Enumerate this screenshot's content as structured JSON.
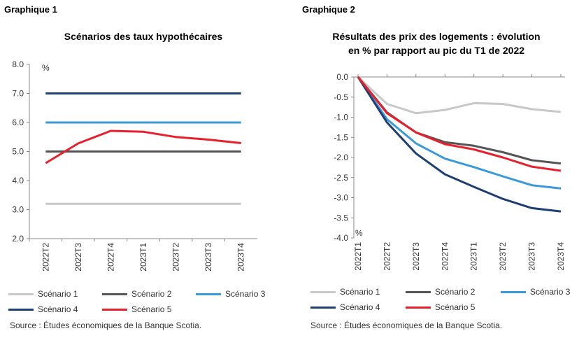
{
  "charts": [
    {
      "label": "Graphique 1",
      "title_lines": [
        "Scénarios des taux hypothécaires"
      ],
      "unit": "%",
      "source": "Source : Études économiques de la Banque Scotia."
    },
    {
      "label": "Graphique 2",
      "title_lines": [
        "Résultats des prix des logements : évolution",
        "en % par rapport au pic du T1 de 2022"
      ],
      "unit": "%",
      "source": "Source : Études économiques de la Banque Scotia."
    }
  ],
  "chart_data": [
    {
      "type": "line",
      "title": "Scénarios des taux hypothécaires",
      "ylabel": "%",
      "ylim": [
        2.0,
        8.0
      ],
      "yticks": [
        "2.0",
        "3.0",
        "4.0",
        "5.0",
        "6.0",
        "7.0",
        "8.0"
      ],
      "categories": [
        "2022T2",
        "2022T3",
        "2022T4",
        "2023T1",
        "2023T2",
        "2023T3",
        "2023T4"
      ],
      "grid": false,
      "legend": "bottom",
      "series": [
        {
          "name": "Scénario 1",
          "color": "#c8c8c8",
          "values": [
            3.2,
            3.2,
            3.2,
            3.2,
            3.2,
            3.2,
            3.2
          ]
        },
        {
          "name": "Scénario 2",
          "color": "#555555",
          "values": [
            5.0,
            5.0,
            5.0,
            5.0,
            5.0,
            5.0,
            5.0
          ]
        },
        {
          "name": "Scénario 3",
          "color": "#3a9ad9",
          "values": [
            6.0,
            6.0,
            6.0,
            6.0,
            6.0,
            6.0,
            6.0
          ]
        },
        {
          "name": "Scénario 4",
          "color": "#1f3f73",
          "values": [
            7.0,
            7.0,
            7.0,
            7.0,
            7.0,
            7.0,
            7.0
          ]
        },
        {
          "name": "Scénario 5",
          "color": "#e8202e",
          "values": [
            4.6,
            5.28,
            5.71,
            5.68,
            5.5,
            5.41,
            5.29
          ]
        }
      ]
    },
    {
      "type": "line",
      "title": "Résultats des prix des logements : évolution en % par rapport au pic du T1 de 2022",
      "ylabel": "%",
      "ylim": [
        -4.0,
        0.0
      ],
      "yticks": [
        "0.0",
        "-0.5",
        "-1.0",
        "-1.5",
        "-2.0",
        "-2.5",
        "-3.0",
        "-3.5",
        "-4.0"
      ],
      "categories": [
        "2022T1",
        "2022T2",
        "2022T3",
        "2022T4",
        "2023T1",
        "2023T2",
        "2023T3",
        "2023T4"
      ],
      "grid": false,
      "legend": "bottom",
      "series": [
        {
          "name": "Scénario 1",
          "color": "#c8c8c8",
          "values": [
            0,
            -0.67,
            -0.9,
            -0.82,
            -0.65,
            -0.67,
            -0.8,
            -0.87
          ]
        },
        {
          "name": "Scénario 2",
          "color": "#555555",
          "values": [
            0,
            -0.88,
            -1.38,
            -1.62,
            -1.71,
            -1.87,
            -2.07,
            -2.15
          ]
        },
        {
          "name": "Scénario 3",
          "color": "#3a9ad9",
          "values": [
            0,
            -1.05,
            -1.65,
            -2.03,
            -2.24,
            -2.47,
            -2.69,
            -2.77
          ]
        },
        {
          "name": "Scénario 4",
          "color": "#1f3f73",
          "values": [
            0,
            -1.13,
            -1.9,
            -2.42,
            -2.73,
            -3.03,
            -3.26,
            -3.34
          ]
        },
        {
          "name": "Scénario 5",
          "color": "#e8202e",
          "values": [
            0,
            -0.9,
            -1.38,
            -1.67,
            -1.8,
            -2.0,
            -2.23,
            -2.33
          ]
        }
      ]
    }
  ]
}
